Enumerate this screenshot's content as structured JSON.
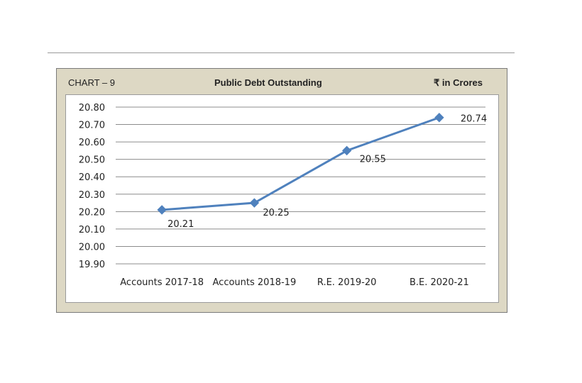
{
  "header": {
    "chart_number": "CHART – 9",
    "title": "Public Debt Outstanding",
    "unit": "₹ in Crores"
  },
  "chart_data": {
    "type": "line",
    "title": "Public Debt Outstanding",
    "unit_note": "₹ in Crores",
    "categories": [
      "Accounts 2017-18",
      "Accounts 2018-19",
      "R.E. 2019-20",
      "B.E. 2020-21"
    ],
    "series": [
      {
        "values": [
          20.21,
          20.25,
          20.55,
          20.74
        ],
        "data_labels": [
          "20.21",
          "20.25",
          "20.55",
          "20.74"
        ]
      }
    ],
    "ylim": [
      19.9,
      20.8
    ],
    "y_ticks": [
      "19.90",
      "20.00",
      "20.10",
      "20.20",
      "20.30",
      "20.40",
      "20.50",
      "20.60",
      "20.70",
      "20.80"
    ],
    "grid": true,
    "legend": "none",
    "line_color": "#4f81bd"
  }
}
